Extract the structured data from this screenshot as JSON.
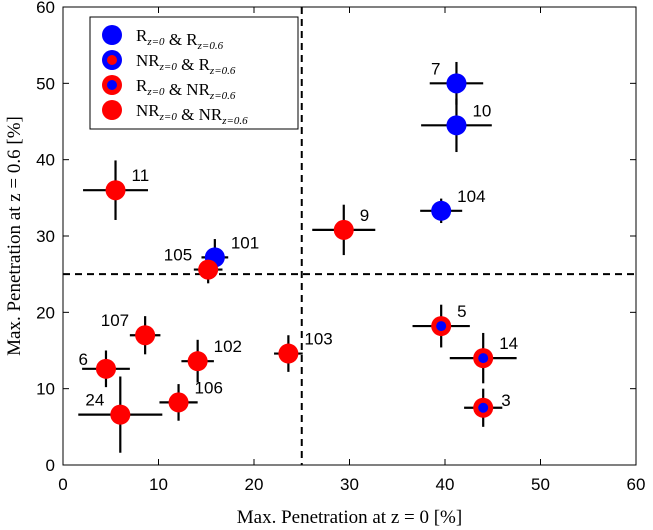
{
  "colors": {
    "blue": "#0000ff",
    "red": "#ff0000",
    "axis": "#000000"
  },
  "chart_data": {
    "type": "scatter",
    "xlabel": "Max. Penetration at z = 0 [%]",
    "ylabel": "Max. Penetration at z = 0.6 [%]",
    "xlim": [
      0,
      60
    ],
    "ylim": [
      0,
      60
    ],
    "x_ticks": [
      "0",
      "10",
      "20",
      "30",
      "40",
      "50",
      "60"
    ],
    "y_ticks": [
      "0",
      "10",
      "20",
      "30",
      "40",
      "50",
      "60"
    ],
    "thresholds": {
      "x": 25,
      "y": 25
    },
    "grid": false,
    "legend_placement": "top-left",
    "legend": [
      {
        "key": "RR",
        "label": "R_{z=0} & R_{z=0.6}",
        "main_a": "R",
        "sub_a": "z=0",
        "amp": " & ",
        "main_b": "R",
        "sub_b": "z=0.6"
      },
      {
        "key": "NRR",
        "label": "NR_{z=0} & R_{z=0.6}",
        "main_a": "NR",
        "sub_a": "z=0",
        "amp": " & ",
        "main_b": "R",
        "sub_b": "z=0.6"
      },
      {
        "key": "RNR",
        "label": "R_{z=0} & NR_{z=0.6}",
        "main_a": "R",
        "sub_a": "z=0",
        "amp": " & ",
        "main_b": "NR",
        "sub_b": "z=0.6"
      },
      {
        "key": "NRNR",
        "label": "NR_{z=0} & NR_{z=0.6}",
        "main_a": "NR",
        "sub_a": "z=0",
        "amp": " & ",
        "main_b": "NR",
        "sub_b": "z=0.6"
      }
    ],
    "points": [
      {
        "label": "7",
        "x": 41.2,
        "y": 50.0,
        "xerr": 2.8,
        "yerr": 2.8,
        "class": "RR",
        "label_pos": "tl"
      },
      {
        "label": "10",
        "x": 41.2,
        "y": 44.5,
        "xerr": 3.7,
        "yerr": 3.5,
        "class": "RR",
        "label_pos": "tr"
      },
      {
        "label": "104",
        "x": 39.6,
        "y": 33.3,
        "xerr": 2.2,
        "yerr": 1.6,
        "class": "RR",
        "label_pos": "tr"
      },
      {
        "label": "101",
        "x": 15.9,
        "y": 27.2,
        "xerr": 1.4,
        "yerr": 2.4,
        "class": "RR",
        "label_pos": "tr"
      },
      {
        "label": "11",
        "x": 5.5,
        "y": 36.0,
        "xerr": 3.4,
        "yerr": 3.9,
        "class": "NRNR",
        "label_pos": "tr"
      },
      {
        "label": "9",
        "x": 29.4,
        "y": 30.8,
        "xerr": 3.3,
        "yerr": 3.3,
        "class": "NRNR",
        "label_pos": "tr"
      },
      {
        "label": "105",
        "x": 15.2,
        "y": 25.6,
        "xerr": 1.5,
        "yerr": 1.8,
        "class": "NRNR",
        "label_pos": "tl"
      },
      {
        "label": "107",
        "x": 8.6,
        "y": 17.0,
        "xerr": 1.6,
        "yerr": 2.5,
        "class": "NRNR",
        "label_pos": "tl"
      },
      {
        "label": "6",
        "x": 4.5,
        "y": 12.6,
        "xerr": 2.5,
        "yerr": 2.4,
        "class": "NRNR",
        "label_pos": "l"
      },
      {
        "label": "102",
        "x": 14.1,
        "y": 13.6,
        "xerr": 1.7,
        "yerr": 2.8,
        "class": "NRNR",
        "label_pos": "tr"
      },
      {
        "label": "106",
        "x": 12.1,
        "y": 8.2,
        "xerr": 2.0,
        "yerr": 2.4,
        "class": "NRNR",
        "label_pos": "tr"
      },
      {
        "label": "24",
        "x": 6.0,
        "y": 6.6,
        "xerr": 4.4,
        "yerr": 5.0,
        "class": "NRNR",
        "label_pos": "tl"
      },
      {
        "label": "103",
        "x": 23.6,
        "y": 14.6,
        "xerr": 1.5,
        "yerr": 2.4,
        "class": "NRNR",
        "label_pos": "tr"
      },
      {
        "label": "5",
        "x": 39.6,
        "y": 18.2,
        "xerr": 3.0,
        "yerr": 2.8,
        "class": "RNR",
        "label_pos": "tr"
      },
      {
        "label": "14",
        "x": 44.0,
        "y": 14.0,
        "xerr": 3.5,
        "yerr": 3.3,
        "class": "RNR",
        "label_pos": "tr"
      },
      {
        "label": "3",
        "x": 44.0,
        "y": 7.5,
        "xerr": 2.0,
        "yerr": 2.5,
        "class": "RNR",
        "label_pos": "r"
      }
    ]
  }
}
